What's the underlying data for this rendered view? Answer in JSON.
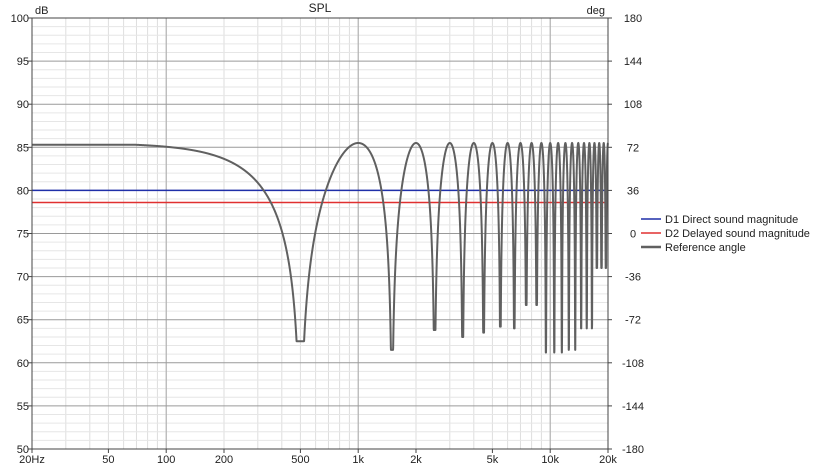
{
  "chart_data": {
    "type": "line",
    "title": "SPL",
    "x_scale": "log",
    "xlim": [
      20,
      20000
    ],
    "ylim": [
      50,
      100
    ],
    "ylim_right": [
      -180,
      180
    ],
    "y_unit": "dB",
    "y_right_unit": "deg",
    "x_ticks": [
      20,
      50,
      100,
      200,
      500,
      1000,
      2000,
      5000,
      10000,
      20000
    ],
    "x_tick_labels": [
      "20Hz",
      "50",
      "100",
      "200",
      "500",
      "1k",
      "2k",
      "5k",
      "10k",
      "20k"
    ],
    "y_ticks": [
      50,
      55,
      60,
      65,
      70,
      75,
      80,
      85,
      90,
      95,
      100
    ],
    "y_right_ticks": [
      -180,
      -144,
      -108,
      -72,
      -36,
      0,
      36,
      72,
      108,
      144,
      180
    ],
    "grid": true,
    "legend_position": "right",
    "series": [
      {
        "name": "D1 Direct sound magnitude",
        "color": "#1f2fa8",
        "kind": "constant",
        "value": 80
      },
      {
        "name": "D2 Delayed sound magnitude",
        "color": "#e03030",
        "kind": "constant",
        "value": 78.6
      },
      {
        "name": "Reference angle",
        "color": "#606060",
        "kind": "comb",
        "peak_db": 85.5,
        "first_notch_hz": 500,
        "notch_spacing_hz": 1000,
        "low_freq_db": 85.3,
        "notches": [
          {
            "x": 500,
            "y": 62.5
          },
          {
            "x": 1500,
            "y": 61.5
          },
          {
            "x": 2500,
            "y": 63.8
          },
          {
            "x": 3500,
            "y": 63
          },
          {
            "x": 4500,
            "y": 63.5
          },
          {
            "x": 5500,
            "y": 64.2
          },
          {
            "x": 6500,
            "y": 64
          },
          {
            "x": 7500,
            "y": 66.7
          },
          {
            "x": 10500,
            "y": 61.2
          },
          {
            "x": 13500,
            "y": 61.5
          },
          {
            "x": 15500,
            "y": 64
          },
          {
            "x": 18500,
            "y": 71
          }
        ]
      }
    ]
  }
}
